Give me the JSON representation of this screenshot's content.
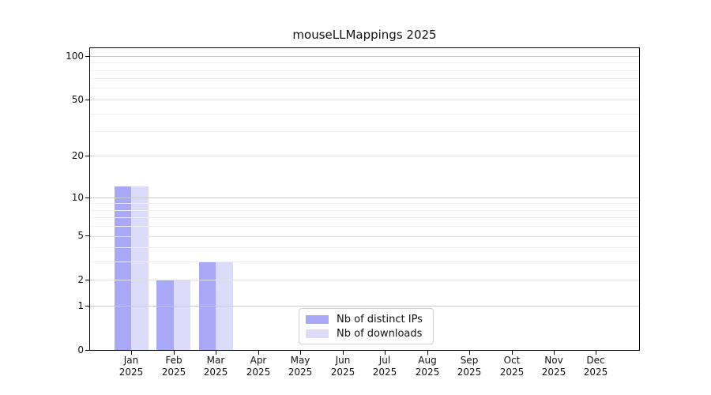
{
  "title": "mouseLLMappings 2025",
  "chart_data": {
    "type": "bar",
    "title": "mouseLLMappings 2025",
    "categories": [
      "Jan 2025",
      "Feb 2025",
      "Mar 2025",
      "Apr 2025",
      "May 2025",
      "Jun 2025",
      "Jul 2025",
      "Aug 2025",
      "Sep 2025",
      "Oct 2025",
      "Nov 2025",
      "Dec 2025"
    ],
    "series": [
      {
        "name": "Nb of distinct IPs",
        "color": "#a8a8f6",
        "values": [
          12,
          2,
          3,
          0,
          0,
          0,
          0,
          0,
          0,
          0,
          0,
          0
        ]
      },
      {
        "name": "Nb of downloads",
        "color": "#dcdcfa",
        "values": [
          12,
          2,
          3,
          0,
          0,
          0,
          0,
          0,
          0,
          0,
          0,
          0
        ]
      }
    ],
    "yscale": "log1p",
    "y_ticks": [
      0,
      1,
      2,
      5,
      10,
      20,
      50,
      100
    ],
    "y_minor_ticks": [
      3,
      4,
      6,
      7,
      8,
      9,
      30,
      40,
      60,
      70,
      80,
      90
    ],
    "ylim": [
      0,
      113
    ],
    "xlabel": "",
    "ylabel": "",
    "grid": true,
    "legend_position": "lower center",
    "grid_colors": {
      "decade": "#c9c9c9",
      "mid": "#e2e2e2",
      "minor": "#efefef"
    }
  }
}
